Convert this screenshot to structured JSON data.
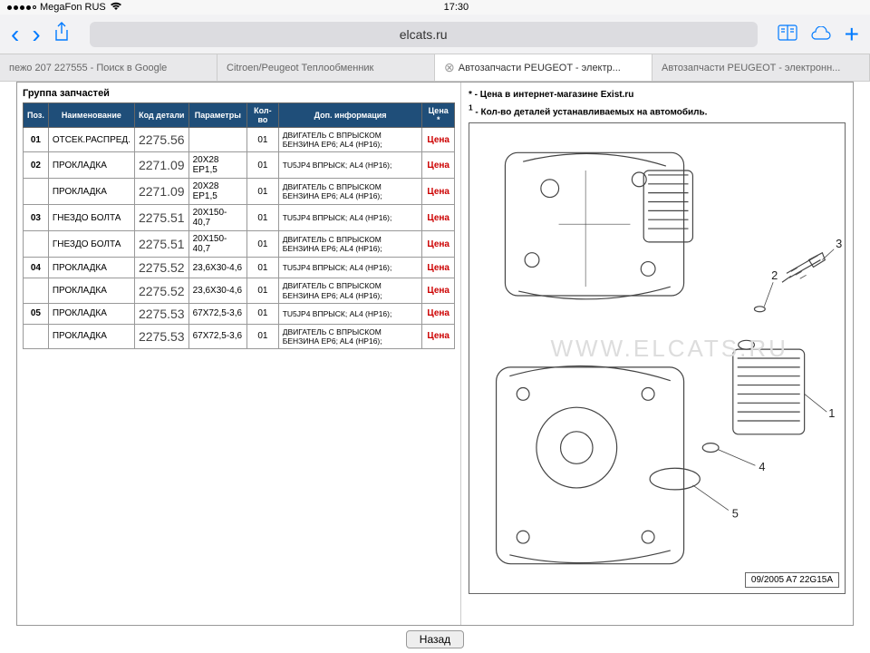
{
  "status": {
    "carrier": "MegaFon RUS",
    "time": "17:30"
  },
  "nav": {
    "url": "elcats.ru"
  },
  "tabs": [
    {
      "label": "пежо 207 227555 - Поиск в Google"
    },
    {
      "label": "Citroen/Peugeot Теплообменник"
    },
    {
      "label": "Автозапчасти PEUGEOT - электр...",
      "active": true
    },
    {
      "label": "Автозапчасти PEUGEOT - электронн..."
    }
  ],
  "section_title": "Группа запчастей",
  "headers": {
    "pos": "Поз.",
    "name": "Наименование",
    "code": "Код детали",
    "params": "Параметры",
    "qty": "Кол-во",
    "info": "Доп. информация",
    "price": "Цена *"
  },
  "rows": [
    {
      "pos": "01",
      "name": "ОТСЕК.РАСПРЕД.",
      "code": "2275.56",
      "params": "",
      "qty": "01",
      "info": "ДВИГАТЕЛЬ С ВПРЫСКОМ БЕНЗИНА EP6; AL4 (HP16);",
      "price": "Цена"
    },
    {
      "pos": "02",
      "name": "ПРОКЛАДКА",
      "code": "2271.09",
      "params": "20X28 EP1,5",
      "qty": "01",
      "info": "TU5JP4 ВПРЫСК; AL4 (HP16);",
      "price": "Цена"
    },
    {
      "pos": "",
      "name": "ПРОКЛАДКА",
      "code": "2271.09",
      "params": "20X28 EP1,5",
      "qty": "01",
      "info": "ДВИГАТЕЛЬ С ВПРЫСКОМ БЕНЗИНА EP6; AL4 (HP16);",
      "price": "Цена"
    },
    {
      "pos": "03",
      "name": "ГНЕЗДО БОЛТА",
      "code": "2275.51",
      "params": "20X150-40,7",
      "qty": "01",
      "info": "TU5JP4 ВПРЫСК; AL4 (HP16);",
      "price": "Цена"
    },
    {
      "pos": "",
      "name": "ГНЕЗДО БОЛТА",
      "code": "2275.51",
      "params": "20X150-40,7",
      "qty": "01",
      "info": "ДВИГАТЕЛЬ С ВПРЫСКОМ БЕНЗИНА EP6; AL4 (HP16);",
      "price": "Цена"
    },
    {
      "pos": "04",
      "name": "ПРОКЛАДКА",
      "code": "2275.52",
      "params": "23,6X30-4,6",
      "qty": "01",
      "info": "TU5JP4 ВПРЫСК; AL4 (HP16);",
      "price": "Цена"
    },
    {
      "pos": "",
      "name": "ПРОКЛАДКА",
      "code": "2275.52",
      "params": "23,6X30-4,6",
      "qty": "01",
      "info": "ДВИГАТЕЛЬ С ВПРЫСКОМ БЕНЗИНА EP6; AL4 (HP16);",
      "price": "Цена"
    },
    {
      "pos": "05",
      "name": "ПРОКЛАДКА",
      "code": "2275.53",
      "params": "67X72,5-3,6",
      "qty": "01",
      "info": "TU5JP4 ВПРЫСК; AL4 (HP16);",
      "price": "Цена"
    },
    {
      "pos": "",
      "name": "ПРОКЛАДКА",
      "code": "2275.53",
      "params": "67X72,5-3,6",
      "qty": "01",
      "info": "ДВИГАТЕЛЬ С ВПРЫСКОМ БЕНЗИНА EP6; AL4 (HP16);",
      "price": "Цена"
    }
  ],
  "notes": {
    "n1": "* - Цена в интернет-магазине Exist.ru",
    "n2_sup": "1",
    "n2_text": " - Кол-во деталей устанавливаемых на автомобиль."
  },
  "diagram": {
    "watermark": "WWW.ELCATS.RU",
    "tag": "09/2005  A7 22G15A",
    "callouts": [
      "1",
      "2",
      "3",
      "4",
      "5"
    ]
  },
  "buttons": {
    "back": "Назад"
  },
  "colors": {
    "header_bg": "#1f4e79",
    "price": "#c00",
    "link": "#007aff"
  }
}
